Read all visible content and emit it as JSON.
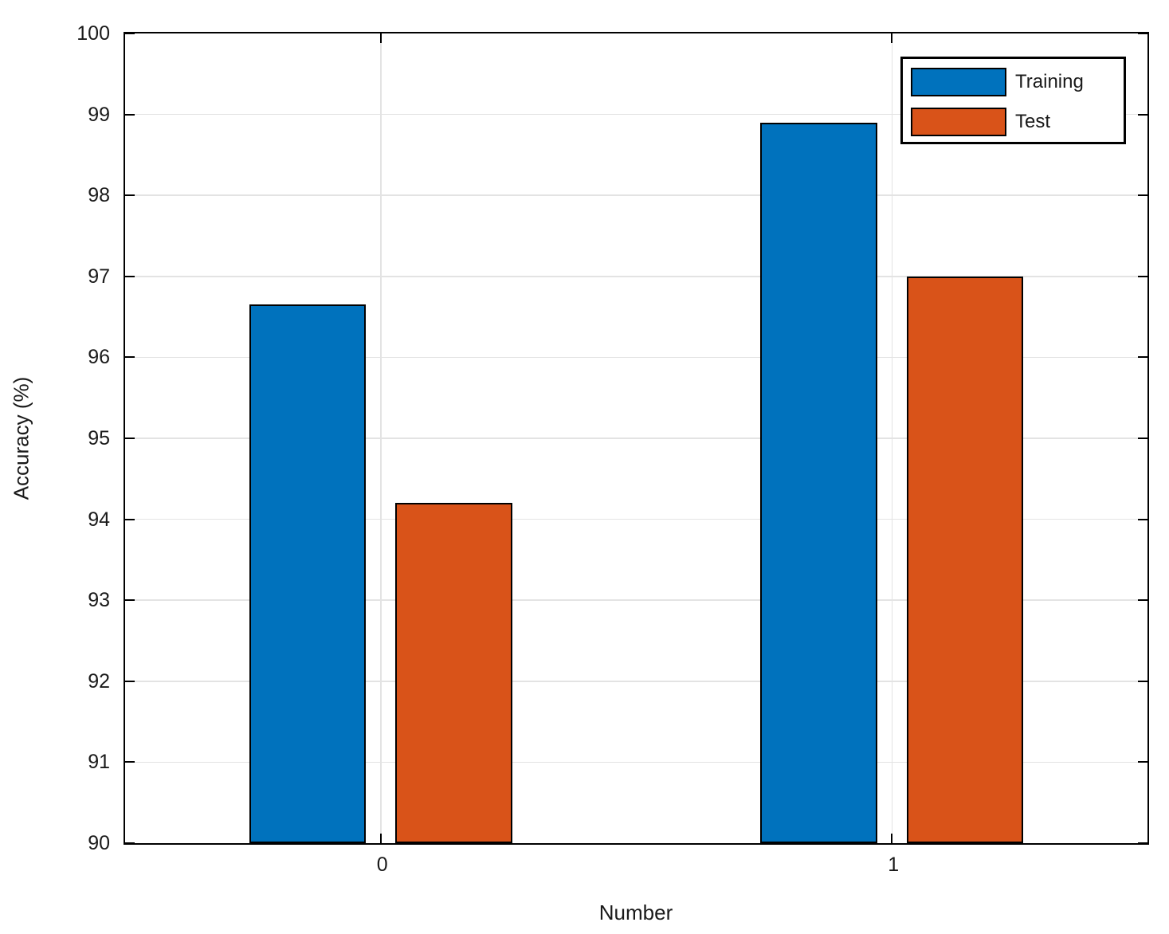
{
  "chart_data": {
    "type": "bar",
    "title": "",
    "xlabel": "Number",
    "ylabel": "Accuracy (%)",
    "categories": [
      "0",
      "1"
    ],
    "series": [
      {
        "name": "Training",
        "color": "#0072BD",
        "values": [
          96.65,
          98.9
        ]
      },
      {
        "name": "Test",
        "color": "#D95319",
        "values": [
          94.2,
          97.0
        ]
      }
    ],
    "ylim": [
      90,
      100
    ],
    "yticks": [
      90,
      91,
      92,
      93,
      94,
      95,
      96,
      97,
      98,
      99,
      100
    ],
    "xlim": [
      -0.5,
      1.5
    ],
    "grid": true,
    "legend_position": "top-right",
    "colors": {
      "axis": "#000000",
      "grid": "#e3e3e3",
      "background": "#ffffff",
      "bar_edge": "#000000"
    }
  }
}
